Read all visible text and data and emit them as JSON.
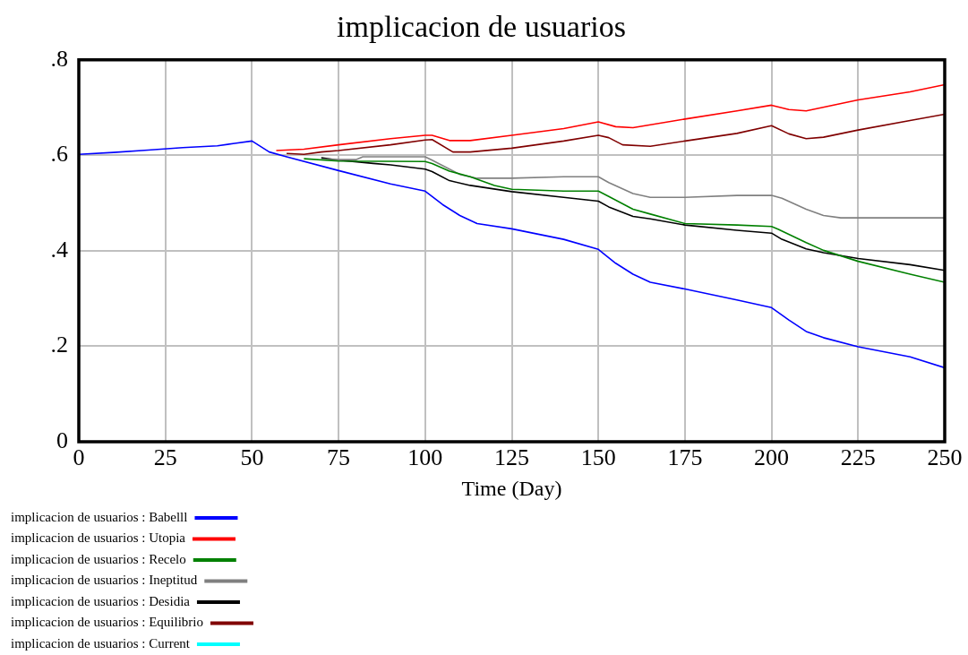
{
  "chart_data": {
    "type": "line",
    "title": "implicacion de usuarios",
    "xlabel": "Time (Day)",
    "xlim": [
      0,
      250
    ],
    "xticks": [
      0,
      25,
      50,
      75,
      100,
      125,
      150,
      175,
      200,
      225,
      250
    ],
    "ylim": [
      0,
      0.8
    ],
    "yticks": [
      {
        "value": 0,
        "label": "0"
      },
      {
        "value": 0.2,
        "label": ".2"
      },
      {
        "value": 0.4,
        "label": ".4"
      },
      {
        "value": 0.6,
        "label": ".6"
      },
      {
        "value": 0.8,
        "label": ".8"
      }
    ],
    "grid": true,
    "legend": "bottom",
    "marker": "none",
    "line_style": "solid",
    "series": [
      {
        "name": "implicacion de usuarios : Babelll",
        "color": "#0000ff",
        "x": [
          0,
          10,
          20,
          30,
          40,
          45,
          50,
          55,
          60,
          75,
          90,
          100,
          105,
          110,
          115,
          125,
          140,
          150,
          155,
          160,
          165,
          175,
          190,
          200,
          205,
          210,
          215,
          225,
          240,
          250
        ],
        "values": [
          0.602,
          0.606,
          0.611,
          0.616,
          0.62,
          0.625,
          0.63,
          0.607,
          0.597,
          0.568,
          0.54,
          0.525,
          0.497,
          0.474,
          0.457,
          0.446,
          0.424,
          0.403,
          0.374,
          0.351,
          0.334,
          0.32,
          0.297,
          0.281,
          0.255,
          0.231,
          0.218,
          0.199,
          0.178,
          0.155
        ]
      },
      {
        "name": "implicacion de usuarios : Utopia",
        "color": "#ff0000",
        "x": [
          57,
          65,
          75,
          90,
          100,
          102,
          107,
          113,
          125,
          140,
          150,
          155,
          160,
          175,
          190,
          200,
          205,
          210,
          225,
          240,
          250
        ],
        "values": [
          0.61,
          0.613,
          0.622,
          0.635,
          0.642,
          0.642,
          0.631,
          0.631,
          0.642,
          0.656,
          0.67,
          0.66,
          0.658,
          0.676,
          0.693,
          0.705,
          0.696,
          0.693,
          0.716,
          0.733,
          0.748
        ]
      },
      {
        "name": "implicacion de usuarios : Recelo",
        "color": "#008000",
        "x": [
          65,
          75,
          100,
          102,
          107,
          113,
          120,
          125,
          140,
          150,
          153,
          160,
          165,
          175,
          190,
          200,
          202,
          210,
          215,
          225,
          240,
          250
        ],
        "values": [
          0.593,
          0.588,
          0.587,
          0.583,
          0.567,
          0.555,
          0.537,
          0.529,
          0.525,
          0.525,
          0.514,
          0.487,
          0.477,
          0.457,
          0.454,
          0.451,
          0.445,
          0.417,
          0.401,
          0.378,
          0.351,
          0.334
        ]
      },
      {
        "name": "implicacion de usuarios : Ineptitud",
        "color": "#808080",
        "x": [
          70,
          80,
          82,
          100,
          102,
          110,
          115,
          125,
          140,
          150,
          153,
          160,
          165,
          175,
          190,
          200,
          203,
          210,
          215,
          220,
          250
        ],
        "values": [
          0.591,
          0.591,
          0.597,
          0.597,
          0.59,
          0.56,
          0.552,
          0.552,
          0.555,
          0.555,
          0.543,
          0.52,
          0.512,
          0.512,
          0.516,
          0.516,
          0.51,
          0.487,
          0.474,
          0.469,
          0.469
        ]
      },
      {
        "name": "implicacion de usuarios : Desidia",
        "color": "#000000",
        "x": [
          70,
          75,
          85,
          90,
          100,
          102,
          107,
          113,
          125,
          140,
          150,
          153,
          160,
          165,
          175,
          190,
          200,
          203,
          210,
          215,
          225,
          240,
          250
        ],
        "values": [
          0.595,
          0.59,
          0.583,
          0.58,
          0.571,
          0.566,
          0.547,
          0.537,
          0.524,
          0.512,
          0.504,
          0.492,
          0.472,
          0.467,
          0.454,
          0.443,
          0.437,
          0.424,
          0.404,
          0.396,
          0.384,
          0.371,
          0.359
        ]
      },
      {
        "name": "implicacion de usuarios : Equilibrio",
        "color": "#800000",
        "x": [
          60,
          65,
          70,
          75,
          90,
          100,
          102,
          108,
          113,
          125,
          140,
          150,
          153,
          157,
          165,
          175,
          190,
          200,
          205,
          210,
          215,
          225,
          240,
          250
        ],
        "values": [
          0.604,
          0.602,
          0.607,
          0.61,
          0.622,
          0.632,
          0.633,
          0.607,
          0.607,
          0.615,
          0.63,
          0.642,
          0.637,
          0.622,
          0.619,
          0.63,
          0.646,
          0.662,
          0.645,
          0.635,
          0.638,
          0.653,
          0.673,
          0.686
        ]
      },
      {
        "name": "implicacion de usuarios : Current",
        "color": "#00ffff"
      }
    ]
  }
}
